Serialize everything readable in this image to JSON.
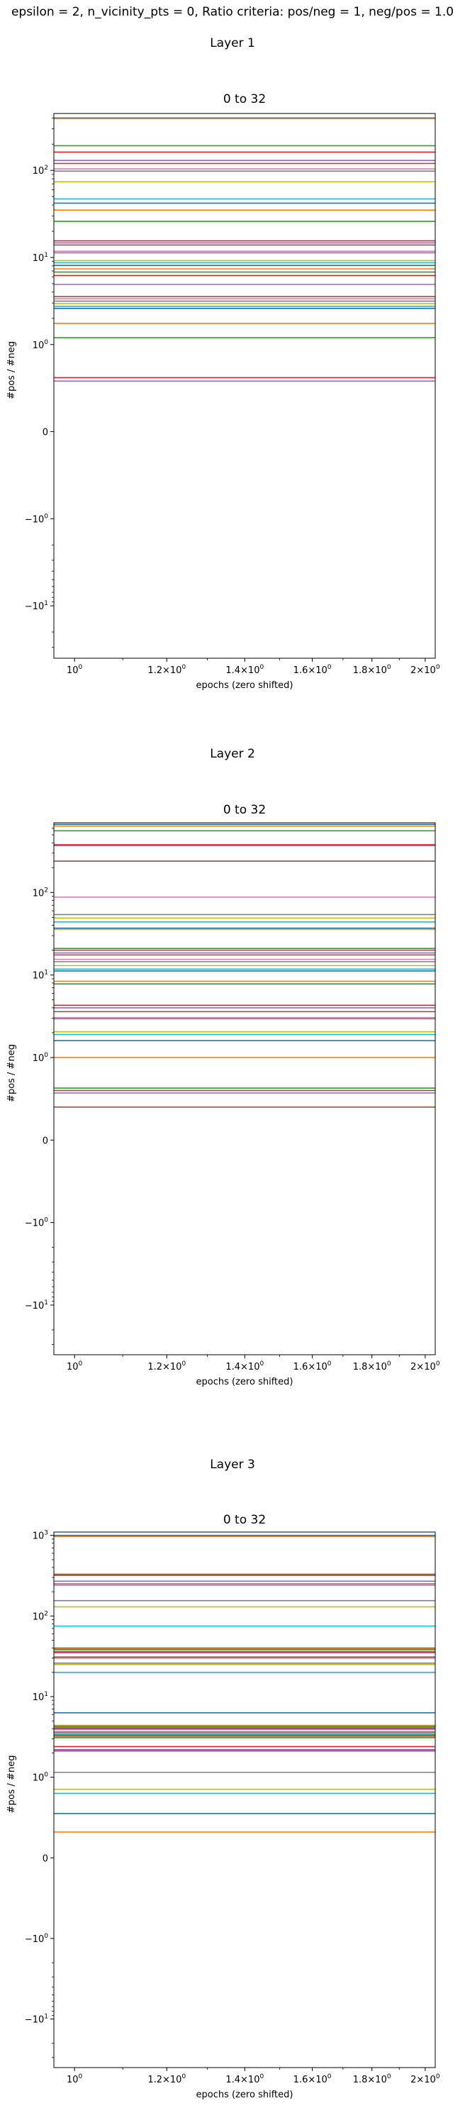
{
  "figure": {
    "suptitle": "epsilon = 2, n_vicinity_pts = 0, Ratio criteria: pos/neg = 1, neg/pos = 1.0"
  },
  "chart_data": [
    {
      "type": "line",
      "section_title": "Layer 1",
      "title": "0 to 32",
      "xlabel": "epochs (zero shifted)",
      "ylabel": "#pos / #neg",
      "xscale": "log",
      "yscale": "symlog",
      "xlim": [
        0.96,
        2.04
      ],
      "ylim": [
        -40,
        450
      ],
      "xticks": [
        1.0,
        1.2,
        1.4,
        1.6,
        1.8,
        2.0
      ],
      "xtick_labels": [
        "10^0",
        "1.2×10^0",
        "1.4×10^0",
        "1.6×10^0",
        "1.8×10^0",
        "2×10^0"
      ],
      "yticks": [
        -10,
        -1,
        0,
        1,
        10,
        100
      ],
      "ytick_labels": [
        "−10^1",
        "−10^0",
        "0",
        "10^0",
        "10^1",
        "10^2"
      ],
      "grid": false,
      "series_x": [
        0.96,
        2.04
      ],
      "series_values": [
        400,
        392,
        192,
        162,
        130,
        120,
        104,
        98,
        74,
        47,
        42,
        35,
        26,
        15.5,
        14.7,
        13.9,
        11.8,
        11.3,
        9.2,
        8.7,
        8.1,
        7.4,
        6.8,
        6.2,
        4.9,
        3.55,
        3.35,
        3.15,
        2.95,
        2.75,
        2.6,
        1.75,
        1.2,
        0.62,
        0.58
      ]
    },
    {
      "type": "line",
      "section_title": "Layer 2",
      "title": "0 to 32",
      "xlabel": "epochs (zero shifted)",
      "ylabel": "#pos / #neg",
      "xscale": "log",
      "yscale": "symlog",
      "xlim": [
        0.96,
        2.04
      ],
      "ylim": [
        -40,
        700
      ],
      "xticks": [
        1.0,
        1.2,
        1.4,
        1.6,
        1.8,
        2.0
      ],
      "xtick_labels": [
        "10^0",
        "1.2×10^0",
        "1.4×10^0",
        "1.6×10^0",
        "1.8×10^0",
        "2×10^0"
      ],
      "yticks": [
        -10,
        -1,
        0,
        1,
        10,
        100
      ],
      "ytick_labels": [
        "−10^1",
        "−10^0",
        "0",
        "10^0",
        "10^1",
        "10^2"
      ],
      "grid": false,
      "series_x": [
        0.96,
        2.04
      ],
      "series_values": [
        670,
        640,
        560,
        380,
        370,
        240,
        88,
        54,
        49,
        44,
        37,
        36,
        21,
        20,
        18.5,
        17.5,
        15.5,
        14.5,
        13,
        11.8,
        11.2,
        8.4,
        7.8,
        4.3,
        4.0,
        3.6,
        3.05,
        2.95,
        2.05,
        1.9,
        1.6,
        1.0,
        0.63,
        0.6,
        0.57,
        0.4
      ]
    },
    {
      "type": "line",
      "section_title": "Layer 3",
      "title": "0 to 32",
      "xlabel": "epochs (zero shifted)",
      "ylabel": "#pos / #neg",
      "xscale": "log",
      "yscale": "symlog",
      "xlim": [
        0.96,
        2.04
      ],
      "ylim": [
        -40,
        1100
      ],
      "xticks": [
        1.0,
        1.2,
        1.4,
        1.6,
        1.8,
        2.0
      ],
      "xtick_labels": [
        "10^0",
        "1.2×10^0",
        "1.4×10^0",
        "1.6×10^0",
        "1.8×10^0",
        "2×10^0"
      ],
      "yticks": [
        -10,
        -1,
        0,
        1,
        10,
        100,
        1000
      ],
      "ytick_labels": [
        "−10^1",
        "−10^0",
        "0",
        "10^0",
        "10^1",
        "10^2",
        "10^3"
      ],
      "grid": false,
      "series_x": [
        0.96,
        2.04
      ],
      "series_values": [
        1000,
        970,
        330,
        320,
        270,
        250,
        240,
        155,
        130,
        75,
        40,
        39,
        38,
        36,
        35,
        31,
        30,
        26,
        25,
        20,
        6.3,
        4.4,
        4.25,
        4.1,
        4.0,
        3.95,
        3.7,
        3.6,
        3.5,
        3.4,
        3.3,
        3.2,
        3.1,
        2.4,
        2.2,
        2.15,
        2.1,
        1.15,
        0.85,
        0.8,
        0.55,
        0.32
      ]
    }
  ],
  "colors": {
    "cycle": [
      "#1f77b4",
      "#ff7f0e",
      "#2ca02c",
      "#d62728",
      "#9467bd",
      "#8c564b",
      "#e377c2",
      "#7f7f7f",
      "#bcbd22",
      "#17becf"
    ],
    "axis": "#000000",
    "background": "#ffffff"
  }
}
